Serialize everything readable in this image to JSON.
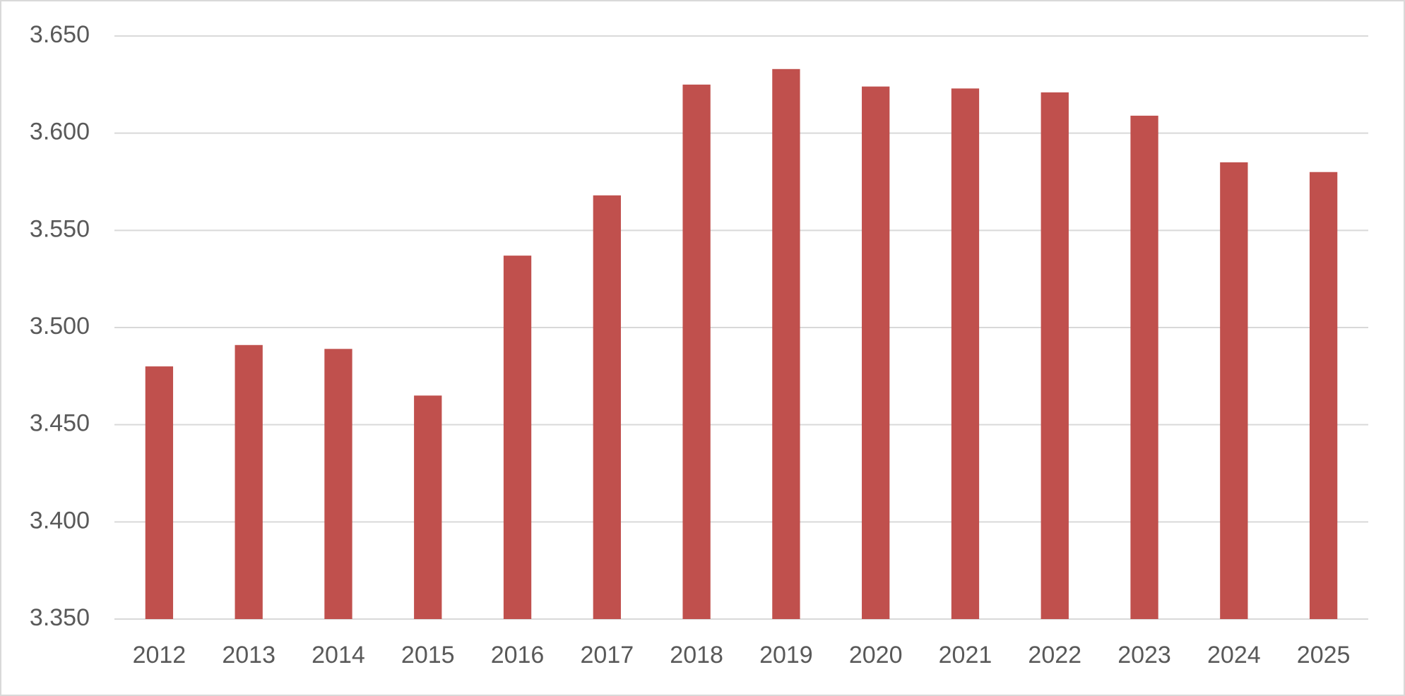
{
  "chart_data": {
    "type": "bar",
    "categories": [
      "2012",
      "2013",
      "2014",
      "2015",
      "2016",
      "2017",
      "2018",
      "2019",
      "2020",
      "2021",
      "2022",
      "2023",
      "2024",
      "2025"
    ],
    "values": [
      3480,
      3491,
      3489,
      3465,
      3537,
      3568,
      3625,
      3633,
      3624,
      3623,
      3621,
      3609,
      3585,
      3580
    ],
    "color": "#c0504d",
    "ylim": [
      3350,
      3650
    ],
    "yticks": [
      {
        "value": 3350,
        "label": "3.350"
      },
      {
        "value": 3400,
        "label": "3.400"
      },
      {
        "value": 3450,
        "label": "3.450"
      },
      {
        "value": 3500,
        "label": "3.500"
      },
      {
        "value": 3550,
        "label": "3.550"
      },
      {
        "value": 3600,
        "label": "3.600"
      },
      {
        "value": 3650,
        "label": "3.650"
      }
    ],
    "grid": true
  }
}
